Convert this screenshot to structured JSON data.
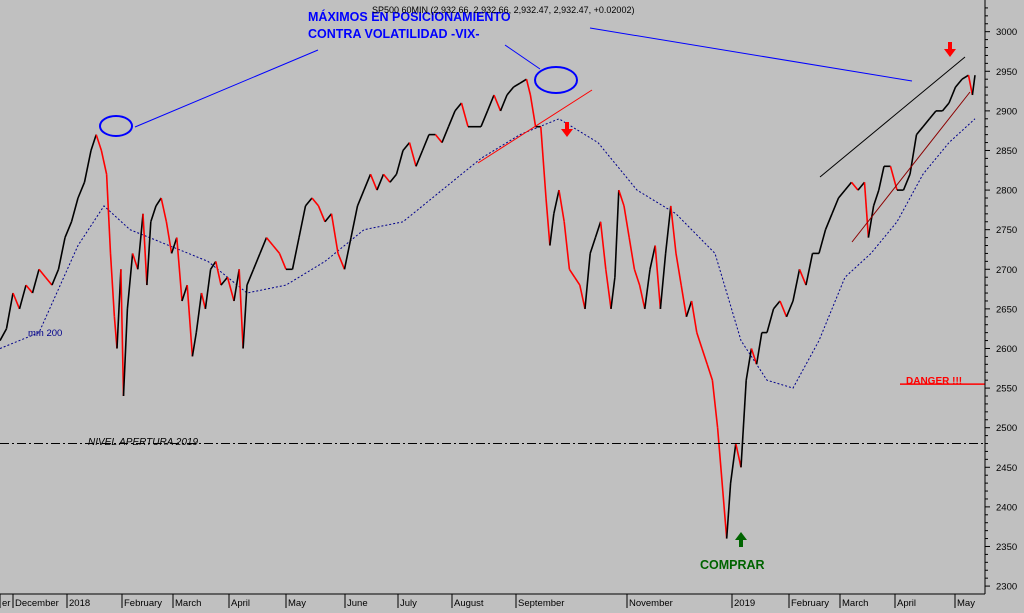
{
  "chart_data": {
    "type": "line",
    "title": "SP500 60MIN (2,932.66, 2,932.66, 2,932.47, 2,932.47, +0.02002)",
    "x_ticks": [
      "er",
      "December",
      "2018",
      "February",
      "March",
      "April",
      "May",
      "June",
      "July",
      "August",
      "September",
      "November",
      "2019",
      "February",
      "March",
      "April",
      "May"
    ],
    "y_ticks": [
      2300,
      2350,
      2400,
      2450,
      2500,
      2550,
      2600,
      2650,
      2700,
      2750,
      2800,
      2850,
      2900,
      2950,
      3000
    ],
    "ylim": [
      2290,
      3040
    ],
    "grid": false,
    "series": [
      {
        "name": "SP500 60MIN",
        "color": "#000000",
        "down_color": "#ff0000",
        "points": [
          [
            0.0,
            2610
          ],
          [
            0.5,
            2625
          ],
          [
            1.0,
            2670
          ],
          [
            1.5,
            2650
          ],
          [
            2.0,
            2680
          ],
          [
            2.5,
            2670
          ],
          [
            3.0,
            2700
          ],
          [
            3.5,
            2690
          ],
          [
            4.0,
            2680
          ],
          [
            4.5,
            2700
          ],
          [
            5.0,
            2740
          ],
          [
            5.5,
            2760
          ],
          [
            6.0,
            2790
          ],
          [
            6.5,
            2810
          ],
          [
            7.0,
            2850
          ],
          [
            7.4,
            2870
          ],
          [
            7.8,
            2850
          ],
          [
            8.2,
            2820
          ],
          [
            8.5,
            2720
          ],
          [
            8.8,
            2640
          ],
          [
            9.0,
            2600
          ],
          [
            9.3,
            2700
          ],
          [
            9.5,
            2540
          ],
          [
            9.8,
            2650
          ],
          [
            10.2,
            2720
          ],
          [
            10.6,
            2700
          ],
          [
            11.0,
            2770
          ],
          [
            11.3,
            2680
          ],
          [
            11.6,
            2760
          ],
          [
            12.0,
            2780
          ],
          [
            12.4,
            2790
          ],
          [
            12.8,
            2760
          ],
          [
            13.2,
            2720
          ],
          [
            13.6,
            2740
          ],
          [
            14.0,
            2660
          ],
          [
            14.4,
            2680
          ],
          [
            14.8,
            2590
          ],
          [
            15.1,
            2620
          ],
          [
            15.5,
            2670
          ],
          [
            15.8,
            2650
          ],
          [
            16.2,
            2700
          ],
          [
            16.6,
            2710
          ],
          [
            17.0,
            2680
          ],
          [
            17.5,
            2690
          ],
          [
            18.0,
            2660
          ],
          [
            18.4,
            2700
          ],
          [
            18.7,
            2600
          ],
          [
            19.0,
            2680
          ],
          [
            19.5,
            2700
          ],
          [
            20.0,
            2720
          ],
          [
            20.5,
            2740
          ],
          [
            21.0,
            2730
          ],
          [
            21.5,
            2720
          ],
          [
            22.0,
            2700
          ],
          [
            22.5,
            2700
          ],
          [
            23.0,
            2740
          ],
          [
            23.5,
            2780
          ],
          [
            24.0,
            2790
          ],
          [
            24.5,
            2780
          ],
          [
            25.0,
            2760
          ],
          [
            25.5,
            2770
          ],
          [
            26.0,
            2720
          ],
          [
            26.5,
            2700
          ],
          [
            27.0,
            2740
          ],
          [
            27.5,
            2780
          ],
          [
            28.0,
            2800
          ],
          [
            28.5,
            2820
          ],
          [
            29.0,
            2800
          ],
          [
            29.5,
            2820
          ],
          [
            30.0,
            2810
          ],
          [
            30.5,
            2820
          ],
          [
            31.0,
            2850
          ],
          [
            31.5,
            2860
          ],
          [
            32.0,
            2830
          ],
          [
            32.5,
            2850
          ],
          [
            33.0,
            2870
          ],
          [
            33.5,
            2870
          ],
          [
            34.0,
            2860
          ],
          [
            34.5,
            2880
          ],
          [
            35.0,
            2900
          ],
          [
            35.5,
            2910
          ],
          [
            36.0,
            2880
          ],
          [
            36.5,
            2880
          ],
          [
            37.0,
            2880
          ],
          [
            37.5,
            2900
          ],
          [
            38.0,
            2920
          ],
          [
            38.5,
            2900
          ],
          [
            39.0,
            2920
          ],
          [
            39.5,
            2930
          ],
          [
            40.0,
            2935
          ],
          [
            40.5,
            2940
          ],
          [
            40.8,
            2920
          ],
          [
            41.2,
            2880
          ],
          [
            41.6,
            2880
          ],
          [
            42.0,
            2790
          ],
          [
            42.3,
            2730
          ],
          [
            42.6,
            2770
          ],
          [
            43.0,
            2800
          ],
          [
            43.4,
            2760
          ],
          [
            43.8,
            2700
          ],
          [
            44.2,
            2690
          ],
          [
            44.6,
            2680
          ],
          [
            45.0,
            2650
          ],
          [
            45.4,
            2720
          ],
          [
            45.8,
            2740
          ],
          [
            46.2,
            2760
          ],
          [
            46.6,
            2700
          ],
          [
            47.0,
            2650
          ],
          [
            47.3,
            2690
          ],
          [
            47.6,
            2800
          ],
          [
            48.0,
            2780
          ],
          [
            48.4,
            2740
          ],
          [
            48.8,
            2700
          ],
          [
            49.2,
            2680
          ],
          [
            49.6,
            2650
          ],
          [
            50.0,
            2700
          ],
          [
            50.4,
            2730
          ],
          [
            50.8,
            2650
          ],
          [
            51.2,
            2720
          ],
          [
            51.6,
            2780
          ],
          [
            52.0,
            2720
          ],
          [
            52.4,
            2680
          ],
          [
            52.8,
            2640
          ],
          [
            53.2,
            2660
          ],
          [
            53.6,
            2620
          ],
          [
            54.0,
            2600
          ],
          [
            54.4,
            2580
          ],
          [
            54.8,
            2560
          ],
          [
            55.2,
            2500
          ],
          [
            55.6,
            2420
          ],
          [
            55.9,
            2360
          ],
          [
            56.2,
            2430
          ],
          [
            56.6,
            2480
          ],
          [
            57.0,
            2450
          ],
          [
            57.4,
            2560
          ],
          [
            57.8,
            2600
          ],
          [
            58.2,
            2580
          ],
          [
            58.6,
            2620
          ],
          [
            59.0,
            2620
          ],
          [
            59.5,
            2650
          ],
          [
            60.0,
            2660
          ],
          [
            60.5,
            2640
          ],
          [
            61.0,
            2660
          ],
          [
            61.5,
            2700
          ],
          [
            62.0,
            2680
          ],
          [
            62.5,
            2720
          ],
          [
            63.0,
            2720
          ],
          [
            63.5,
            2750
          ],
          [
            64.0,
            2770
          ],
          [
            64.5,
            2790
          ],
          [
            65.0,
            2800
          ],
          [
            65.5,
            2810
          ],
          [
            66.0,
            2800
          ],
          [
            66.5,
            2810
          ],
          [
            66.8,
            2740
          ],
          [
            67.2,
            2780
          ],
          [
            67.6,
            2800
          ],
          [
            68.0,
            2830
          ],
          [
            68.5,
            2830
          ],
          [
            69.0,
            2800
          ],
          [
            69.5,
            2800
          ],
          [
            70.0,
            2820
          ],
          [
            70.5,
            2870
          ],
          [
            71.0,
            2880
          ],
          [
            71.5,
            2890
          ],
          [
            72.0,
            2900
          ],
          [
            72.5,
            2900
          ],
          [
            73.0,
            2910
          ],
          [
            73.5,
            2930
          ],
          [
            74.0,
            2940
          ],
          [
            74.5,
            2945
          ],
          [
            74.8,
            2920
          ],
          [
            75.0,
            2945
          ]
        ]
      },
      {
        "name": "mm 200",
        "color": "#00008b",
        "points": [
          [
            0,
            2600
          ],
          [
            3,
            2620
          ],
          [
            6,
            2730
          ],
          [
            8,
            2780
          ],
          [
            10,
            2750
          ],
          [
            13,
            2730
          ],
          [
            16,
            2710
          ],
          [
            19,
            2670
          ],
          [
            22,
            2680
          ],
          [
            25,
            2710
          ],
          [
            28,
            2750
          ],
          [
            31,
            2760
          ],
          [
            34,
            2800
          ],
          [
            37,
            2840
          ],
          [
            40,
            2870
          ],
          [
            43,
            2890
          ],
          [
            46,
            2860
          ],
          [
            49,
            2800
          ],
          [
            52,
            2770
          ],
          [
            55,
            2720
          ],
          [
            57,
            2610
          ],
          [
            59,
            2560
          ],
          [
            61,
            2550
          ],
          [
            63,
            2610
          ],
          [
            65,
            2690
          ],
          [
            67,
            2720
          ],
          [
            69,
            2760
          ],
          [
            71,
            2820
          ],
          [
            73,
            2860
          ],
          [
            75,
            2890
          ]
        ]
      }
    ],
    "annotations": {
      "max_title_1": "MÁXIMOS EN POSICIONAMIENTO",
      "max_title_2": "CONTRA VOLATILIDAD -VIX-",
      "mm_label": "mm 200",
      "nivel_apertura": "NIVEL APERTURA 2019",
      "danger": "DANGER !!!",
      "comprar": "COMPRAR"
    },
    "levels": {
      "apertura_2019": 2480,
      "danger": 2555
    }
  }
}
